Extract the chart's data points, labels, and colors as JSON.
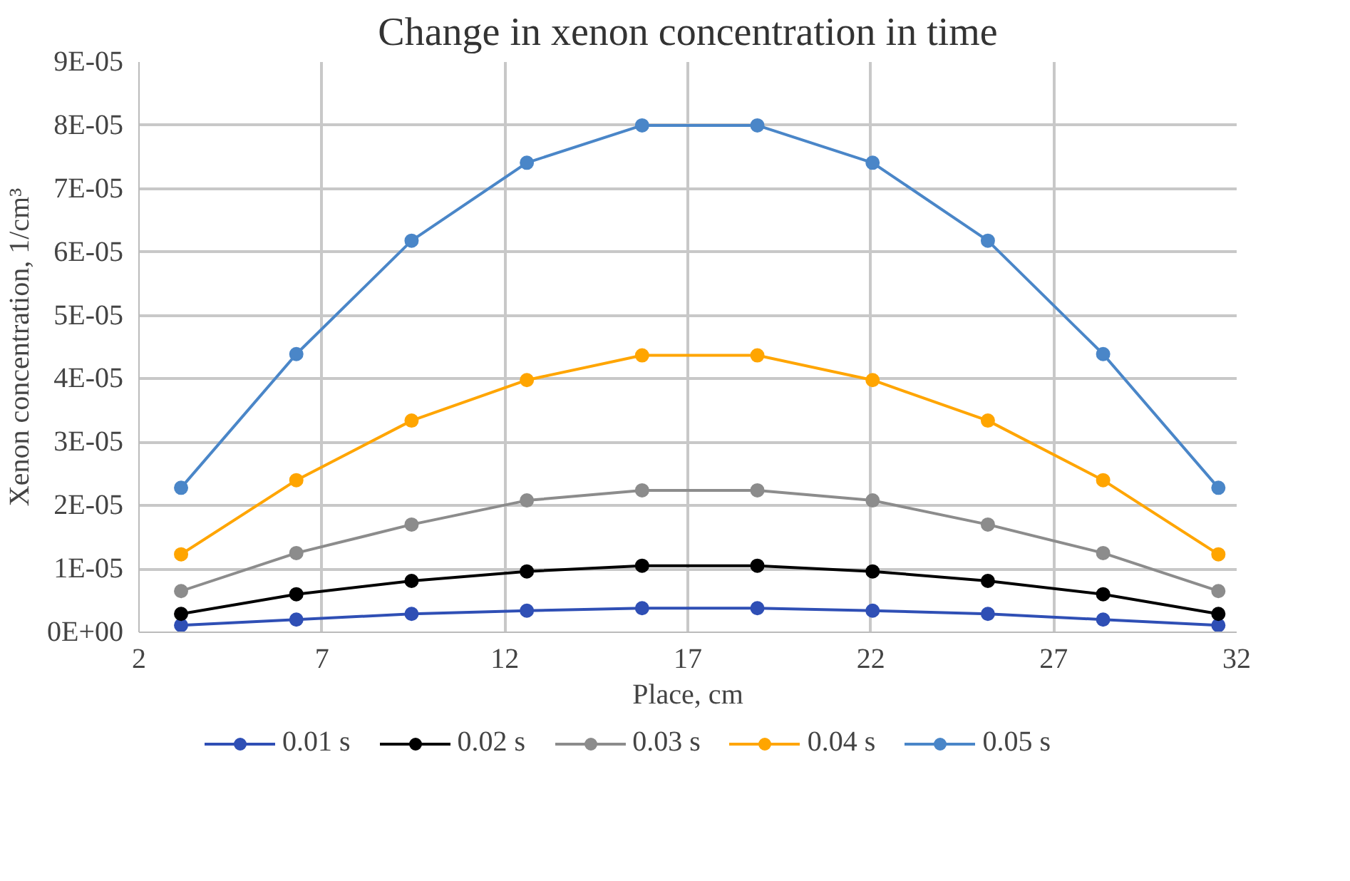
{
  "chart_data": {
    "type": "line",
    "title": "Change in xenon concentration in time",
    "xlabel": "Place, cm",
    "ylabel": "Xenon concentration, 1/cm³",
    "x": [
      3.15,
      6.3,
      9.45,
      12.6,
      15.75,
      18.9,
      22.05,
      25.2,
      28.35,
      31.5
    ],
    "series": [
      {
        "name": "0.01 s",
        "color": "#2f4fb5",
        "values": [
          1.1e-06,
          2e-06,
          2.9e-06,
          3.4e-06,
          3.8e-06,
          3.8e-06,
          3.4e-06,
          2.9e-06,
          2e-06,
          1.1e-06
        ]
      },
      {
        "name": "0.02 s",
        "color": "#000000",
        "values": [
          2.9e-06,
          6e-06,
          8.1e-06,
          9.6e-06,
          1.05e-05,
          1.05e-05,
          9.6e-06,
          8.1e-06,
          6e-06,
          2.9e-06
        ]
      },
      {
        "name": "0.03 s",
        "color": "#8c8c8c",
        "values": [
          6.5e-06,
          1.25e-05,
          1.7e-05,
          2.08e-05,
          2.24e-05,
          2.24e-05,
          2.08e-05,
          1.7e-05,
          1.25e-05,
          6.5e-06
        ]
      },
      {
        "name": "0.04 s",
        "color": "#ffa500",
        "values": [
          1.23e-05,
          2.4e-05,
          3.34e-05,
          3.98e-05,
          4.37e-05,
          4.37e-05,
          3.98e-05,
          3.34e-05,
          2.4e-05,
          1.23e-05
        ]
      },
      {
        "name": "0.05 s",
        "color": "#4a86c8",
        "values": [
          2.28e-05,
          4.39e-05,
          6.18e-05,
          7.41e-05,
          8e-05,
          8e-05,
          7.41e-05,
          6.18e-05,
          4.39e-05,
          2.28e-05
        ]
      }
    ],
    "xlim": [
      2,
      32
    ],
    "xticks": [
      2,
      7,
      12,
      17,
      22,
      27,
      32
    ],
    "ylim": [
      0,
      9e-05
    ],
    "yticks": [
      {
        "value": 0,
        "label": "0E+00"
      },
      {
        "value": 1e-05,
        "label": "1E-05"
      },
      {
        "value": 2e-05,
        "label": "2E-05"
      },
      {
        "value": 3e-05,
        "label": "3E-05"
      },
      {
        "value": 4e-05,
        "label": "4E-05"
      },
      {
        "value": 5e-05,
        "label": "5E-05"
      },
      {
        "value": 6e-05,
        "label": "6E-05"
      },
      {
        "value": 7e-05,
        "label": "7E-05"
      },
      {
        "value": 8e-05,
        "label": "8E-05"
      },
      {
        "value": 9e-05,
        "label": "9E-05"
      }
    ],
    "grid": true,
    "legend": "bottom",
    "marker": "circle",
    "line_style": "solid"
  }
}
